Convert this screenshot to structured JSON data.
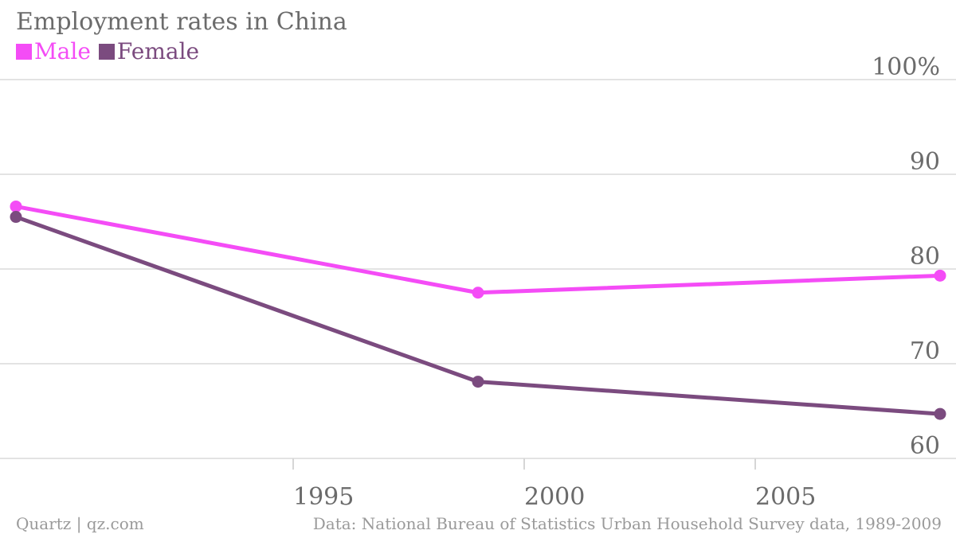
{
  "title": "Employment rates in China",
  "legend": [
    {
      "label": "Male",
      "color": "#f44cf6"
    },
    {
      "label": "Female",
      "color": "#7b4b7f"
    }
  ],
  "footer": {
    "source_credit": "Quartz | qz.com",
    "data_source": "Data: National Bureau of Statistics Urban Household Survey data, 1989-2009"
  },
  "chart_data": {
    "type": "line",
    "title": "Employment rates in China",
    "xlabel": "",
    "ylabel": "",
    "x": [
      1989,
      1999,
      2009
    ],
    "x_ticks": [
      1995,
      2000,
      2005
    ],
    "x_tick_labels": [
      "1995",
      "2000",
      "2005"
    ],
    "xlim": [
      1989,
      2009
    ],
    "y_ticks": [
      60,
      70,
      80,
      90,
      100
    ],
    "y_tick_labels": [
      "60",
      "70",
      "80",
      "90",
      "100%"
    ],
    "ylim": [
      60,
      100
    ],
    "grid": true,
    "legend_position": "top-left",
    "series": [
      {
        "name": "Male",
        "color": "#f44cf6",
        "values": [
          86.6,
          77.5,
          79.3
        ]
      },
      {
        "name": "Female",
        "color": "#7b4b7f",
        "values": [
          85.5,
          68.1,
          64.7
        ]
      }
    ]
  }
}
